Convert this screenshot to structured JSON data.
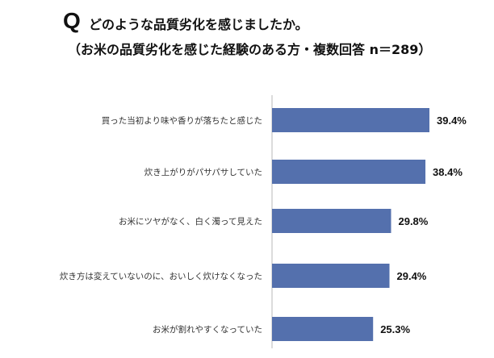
{
  "header": {
    "q_mark": "Q",
    "question": "どのような品質劣化を感じましたか。",
    "subtitle": "（お米の品質劣化を感じた経験のある方・複数回答 n＝289）"
  },
  "colors": {
    "bar": "#5470ad",
    "axis": "#b8b8b8"
  },
  "chart_data": {
    "type": "bar",
    "orientation": "horizontal",
    "categories": [
      "買った当初より味や香りが落ちたと感じた",
      "炊き上がりがパサパサしていた",
      "お米にツヤがなく、白く濁って見えた",
      "炊き方は変えていないのに、おいしく炊けなくなった",
      "お米が割れやすくなっていた"
    ],
    "values": [
      39.4,
      38.4,
      29.8,
      29.4,
      25.3
    ],
    "value_labels": [
      "39.4%",
      "38.4%",
      "29.8%",
      "29.4%",
      "25.3%"
    ],
    "xlim": [
      0,
      45
    ],
    "grid": false,
    "legend": "none"
  }
}
